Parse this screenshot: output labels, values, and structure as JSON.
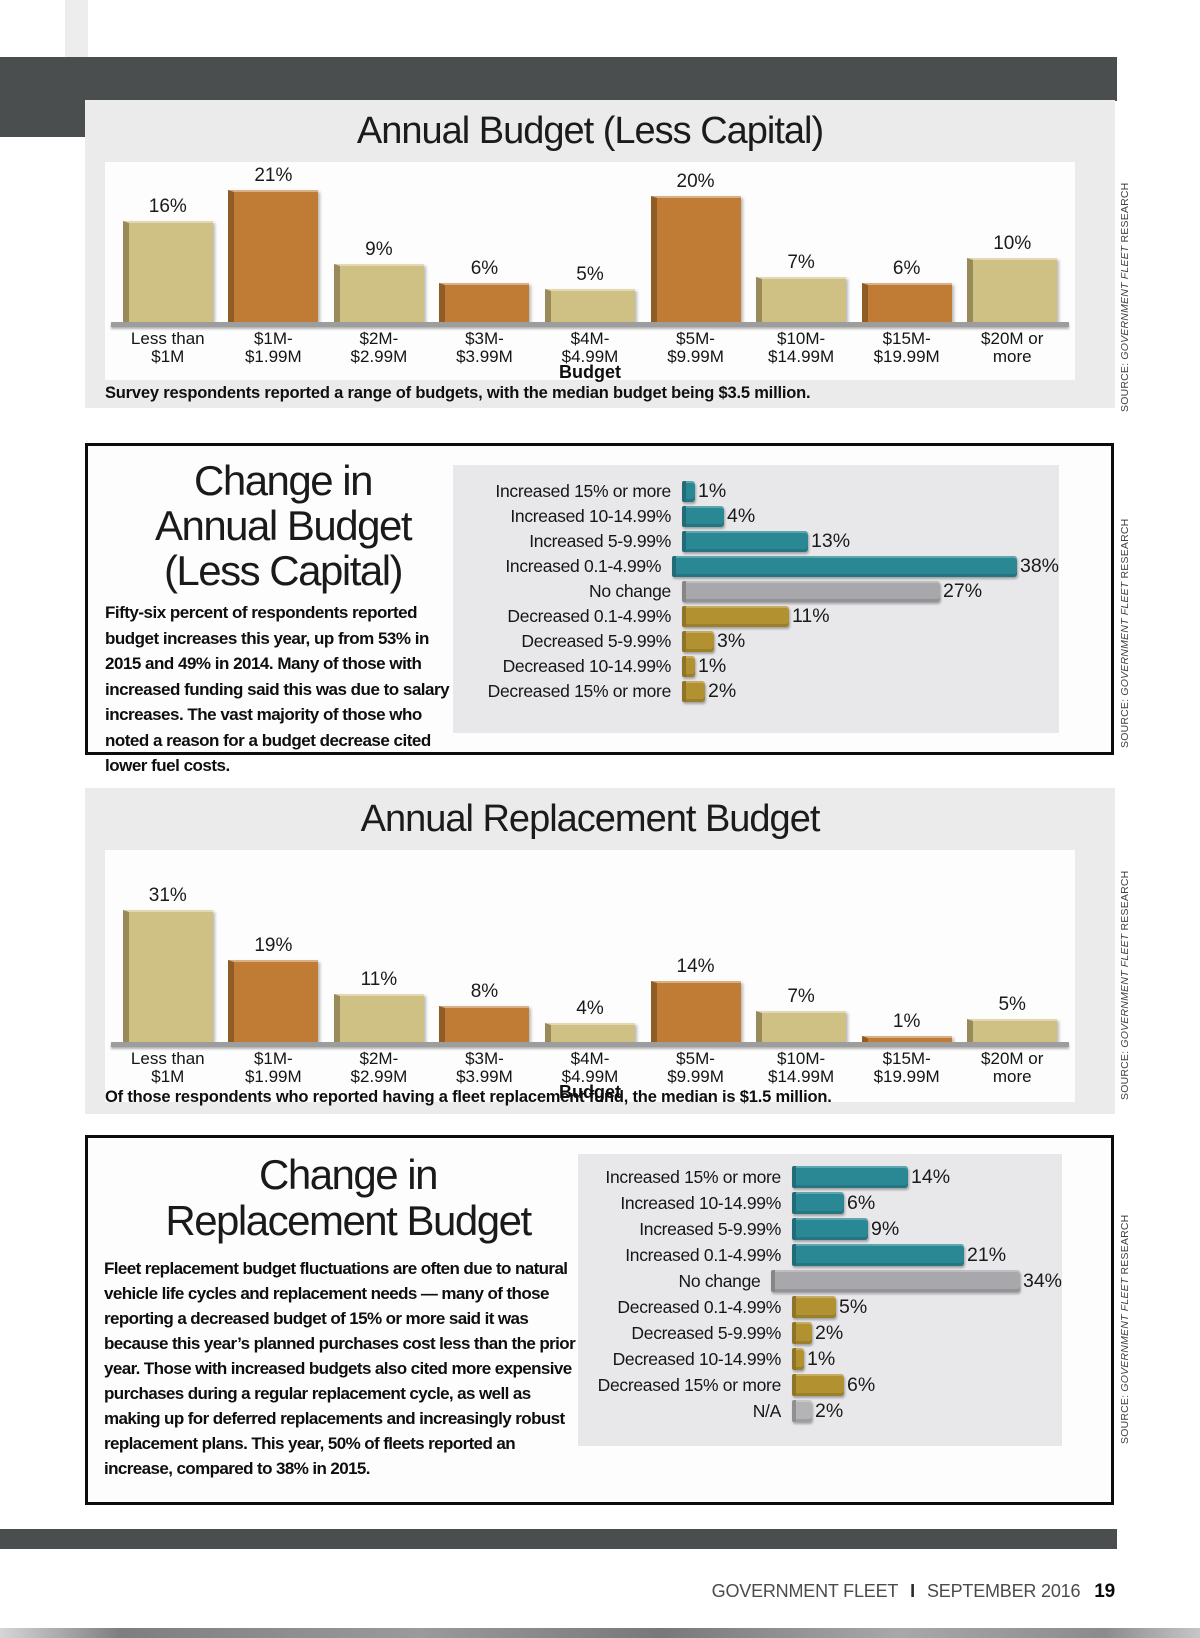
{
  "colors": {
    "bar_tan": "#cfc083",
    "bar_orange": "#c07c35",
    "increase_teal": "#2a8794",
    "no_change_gray": "#a8a8ac",
    "decrease_gold": "#b29130",
    "na_gray": "#b4b4b7",
    "header_band": "#4b4e4f",
    "panel_gray": "#ebebeb",
    "chart_area_gray": "#e8e8ea",
    "chart_inner_white": "#fdfdfd"
  },
  "source": {
    "prefix": "SOURCE: ",
    "name": "GOVERNMENT FLEET",
    "suffix": " RESEARCH"
  },
  "footer": {
    "magazine": "GOVERNMENT FLEET",
    "separator": "I",
    "issue": "SEPTEMBER 2016",
    "page_number": "19"
  },
  "chart_data": [
    {
      "type": "bar",
      "title": "Annual Budget (Less Capital)",
      "xlabel": "Budget",
      "unit": "%",
      "categories": [
        "Less than\n$1M",
        "$1M-\n$1.99M",
        "$2M-\n$2.99M",
        "$3M-\n$3.99M",
        "$4M-\n$4.99M",
        "$5M-\n$9.99M",
        "$10M-\n$14.99M",
        "$15M-\n$19.99M",
        "$20M or\nmore"
      ],
      "values": [
        16,
        21,
        9,
        6,
        5,
        20,
        7,
        6,
        10
      ],
      "caption": "Survey respondents reported a range of budgets, with the median budget being $3.5 million."
    },
    {
      "type": "bar-horizontal",
      "title": "Change in Annual Budget (Less Capital)",
      "title_lines": [
        "Change in",
        "Annual Budget",
        "(Less Capital)"
      ],
      "unit": "%",
      "categories": [
        "Increased 15% or more",
        "Increased 10-14.99%",
        "Increased 5-9.99%",
        "Increased 0.1-4.99%",
        "No change",
        "Decreased 0.1-4.99%",
        "Decreased 5-9.99%",
        "Decreased 10-14.99%",
        "Decreased 15% or more"
      ],
      "values": [
        1,
        4,
        13,
        38,
        27,
        11,
        3,
        1,
        2
      ],
      "bar_groups": [
        "increase_teal",
        "increase_teal",
        "increase_teal",
        "increase_teal",
        "no_change_gray",
        "decrease_gold",
        "decrease_gold",
        "decrease_gold",
        "decrease_gold"
      ],
      "description": "Fifty-six percent of respondents reported budget increases this year, up from 53% in 2015 and 49% in 2014. Many of those with increased funding said this was due to salary increases. The vast majority of those who noted a reason for a budget decrease cited lower fuel costs."
    },
    {
      "type": "bar",
      "title": "Annual Replacement Budget",
      "xlabel": "Budget",
      "unit": "%",
      "categories": [
        "Less than\n$1M",
        "$1M-\n$1.99M",
        "$2M-\n$2.99M",
        "$3M-\n$3.99M",
        "$4M-\n$4.99M",
        "$5M-\n$9.99M",
        "$10M-\n$14.99M",
        "$15M-\n$19.99M",
        "$20M or\nmore"
      ],
      "values": [
        31,
        19,
        11,
        8,
        4,
        14,
        7,
        1,
        5
      ],
      "caption": "Of those respondents who reported having a fleet replacement fund, the median is $1.5 million."
    },
    {
      "type": "bar-horizontal",
      "title": "Change in Replacement Budget",
      "title_lines": [
        "Change in",
        "Replacement Budget"
      ],
      "unit": "%",
      "categories": [
        "Increased 15% or more",
        "Increased 10-14.99%",
        "Increased 5-9.99%",
        "Increased 0.1-4.99%",
        "No change",
        "Decreased 0.1-4.99%",
        "Decreased 5-9.99%",
        "Decreased 10-14.99%",
        "Decreased 15% or more",
        "N/A"
      ],
      "values": [
        14,
        6,
        9,
        21,
        34,
        5,
        2,
        1,
        6,
        2
      ],
      "bar_groups": [
        "increase_teal",
        "increase_teal",
        "increase_teal",
        "increase_teal",
        "no_change_gray",
        "decrease_gold",
        "decrease_gold",
        "decrease_gold",
        "decrease_gold",
        "na_gray"
      ],
      "description": "Fleet replacement budget fluctuations are often due to natural vehicle life cycles and replacement needs — many of those reporting a decreased budget of 15% or more said it was because this year’s planned purchases cost less than the prior year. Those with increased budgets also cited more expensive purchases during a regular replacement cycle, as well as making up for deferred replacements and increasingly robust replacement plans. This year, 50% of fleets reported an increase, compared to 38% in 2015."
    }
  ]
}
